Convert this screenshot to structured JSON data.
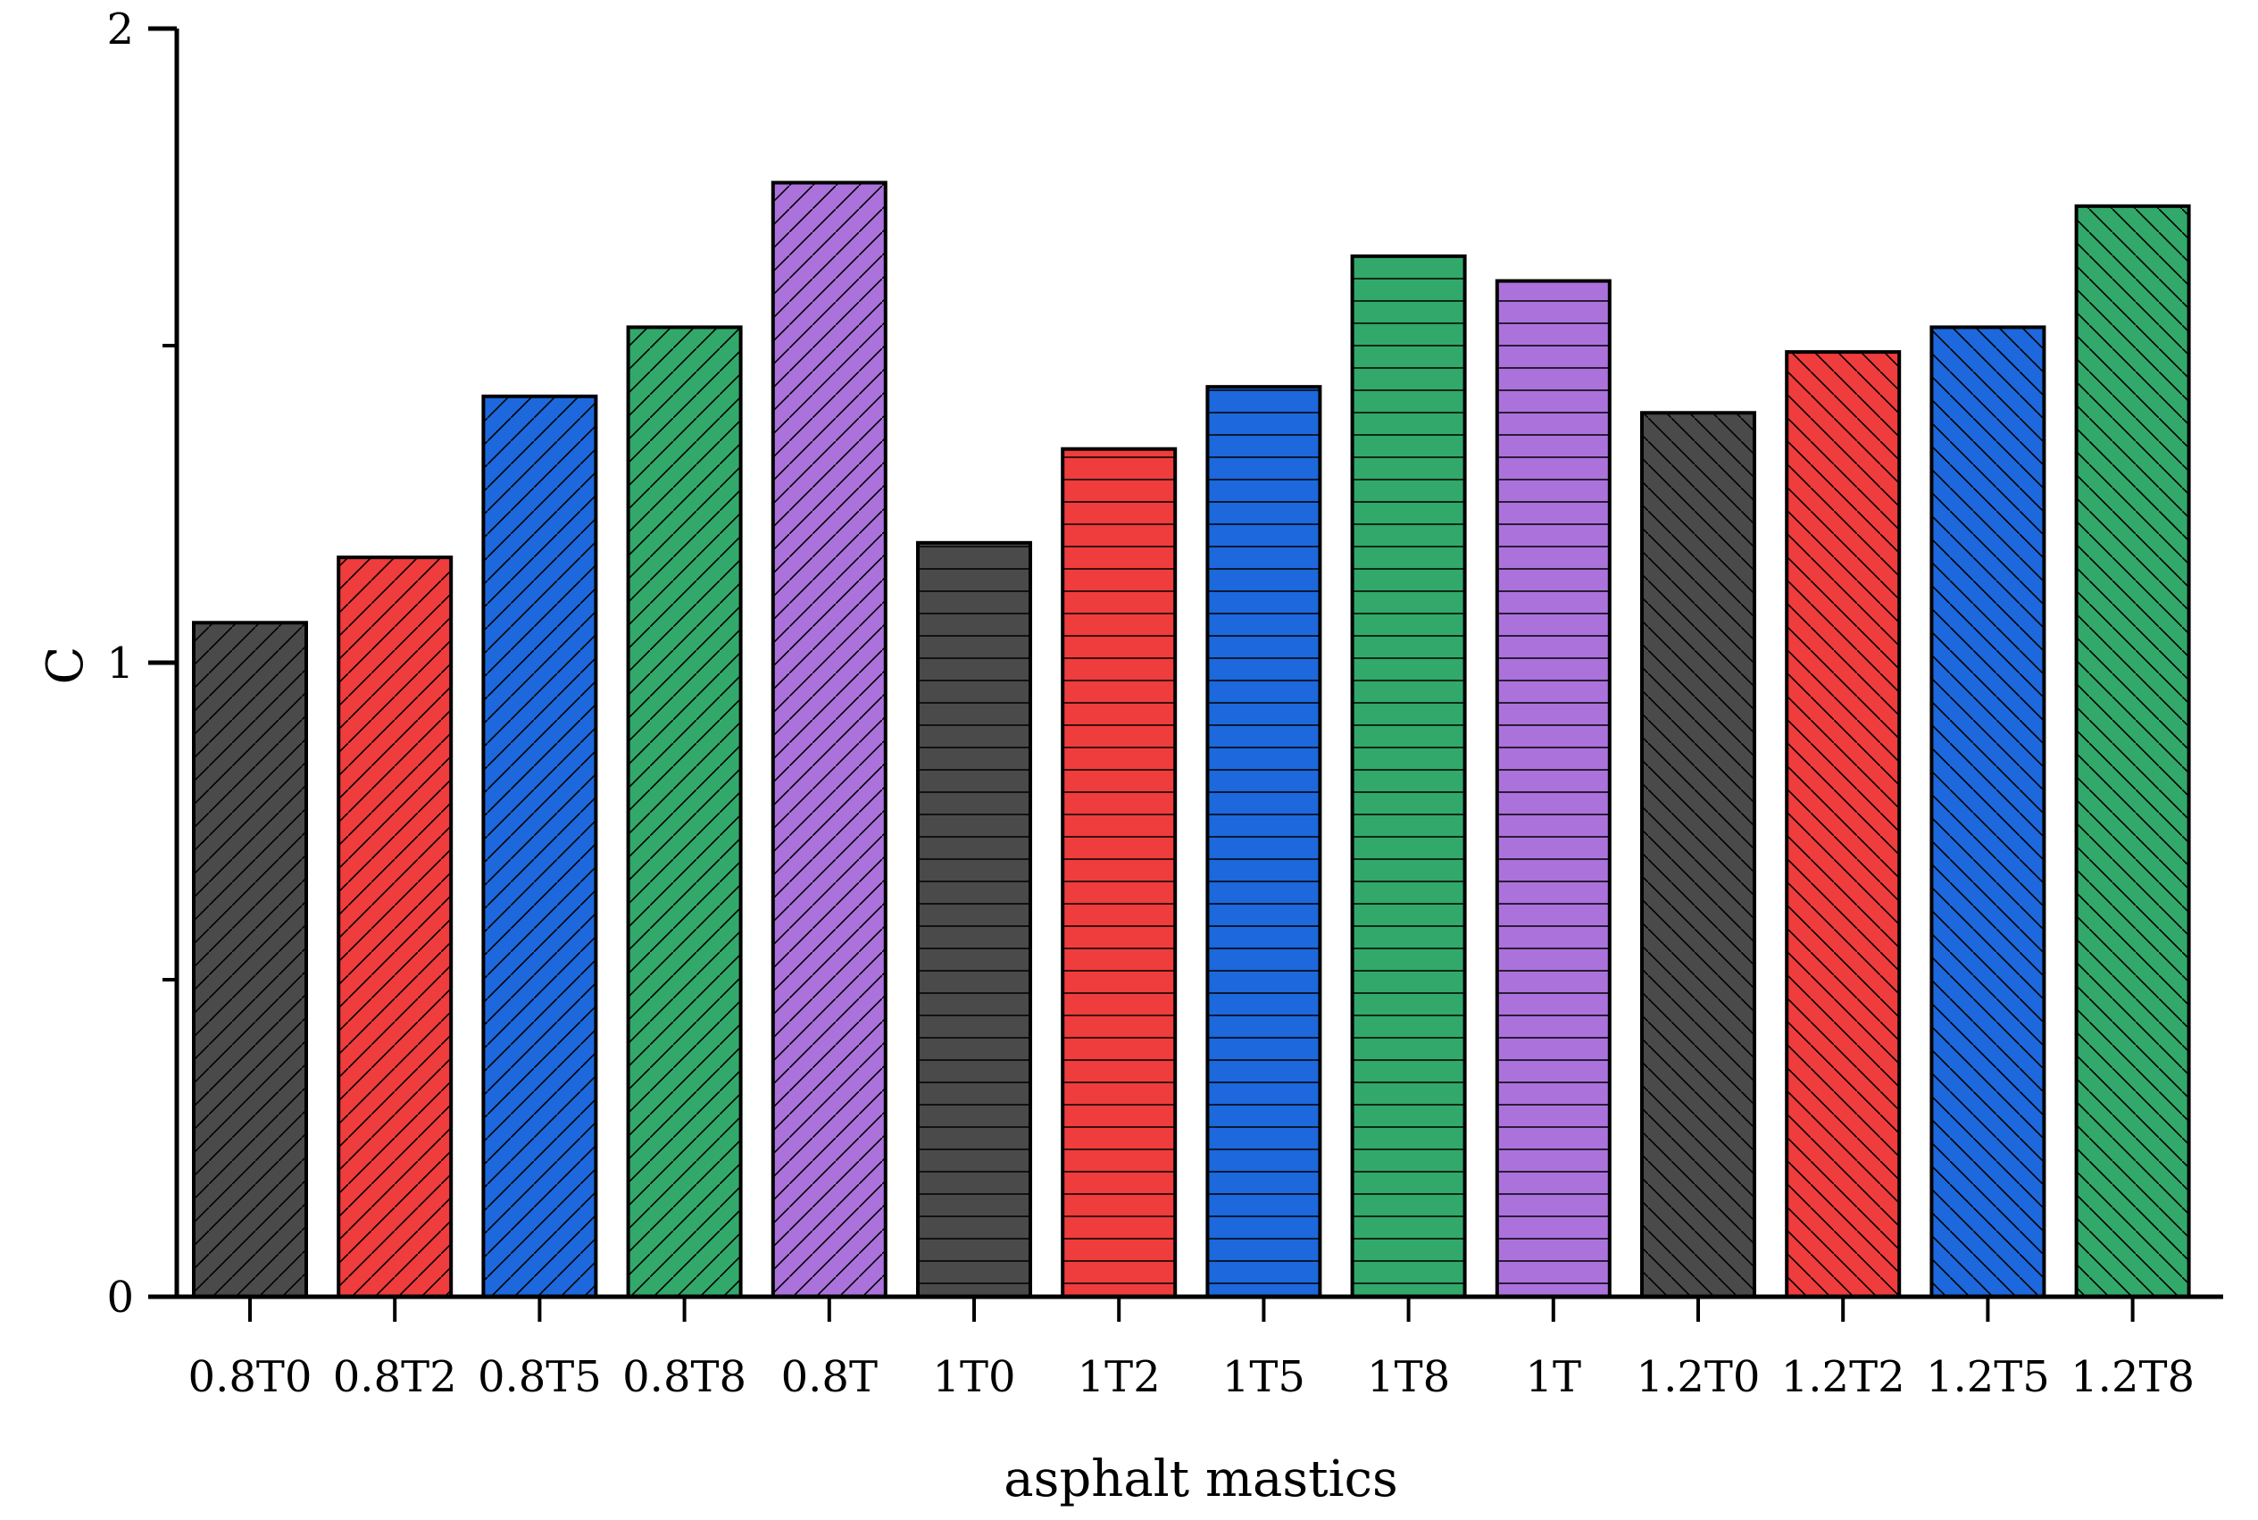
{
  "chart_data": {
    "type": "bar",
    "title": "",
    "xlabel": "asphalt mastics",
    "ylabel": "C",
    "ylim": [
      0,
      2
    ],
    "yticks": [
      0,
      1,
      2
    ],
    "grid": false,
    "legend": "none",
    "categories": [
      "0.8T0",
      "0.8T2",
      "0.8T5",
      "0.8T8",
      "0.8T",
      "1T0",
      "1T2",
      "1T5",
      "1T8",
      "1T",
      "1.2T0",
      "1.2T2",
      "1.2T5",
      "1.2T8"
    ],
    "values": [
      1.063,
      1.166,
      1.42,
      1.529,
      1.757,
      1.189,
      1.337,
      1.435,
      1.641,
      1.602,
      1.394,
      1.49,
      1.529,
      1.72
    ],
    "bar_colors": [
      "#4a4a4a",
      "#ef3c3c",
      "#1c68dc",
      "#32a86a",
      "#ac72dc",
      "#4a4a4a",
      "#ef3c3c",
      "#1c68dc",
      "#32a86a",
      "#ac72dc",
      "#4a4a4a",
      "#ef3c3c",
      "#1c68dc",
      "#32a86a"
    ],
    "bar_patterns": [
      "diag-up",
      "diag-up",
      "diag-up",
      "diag-up",
      "diag-up",
      "horizontal",
      "horizontal",
      "horizontal",
      "horizontal",
      "horizontal",
      "diag-down",
      "diag-down",
      "diag-down",
      "diag-down"
    ]
  }
}
